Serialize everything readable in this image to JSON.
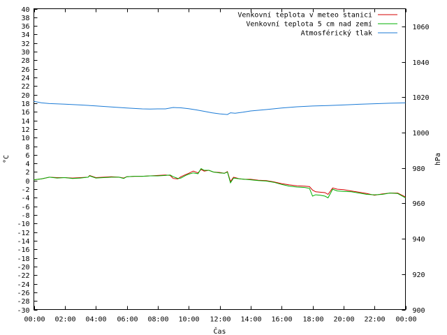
{
  "chart_data": {
    "type": "line",
    "xlabel": "Čas",
    "ylabel": "°C",
    "y2label": "hPa",
    "x_ticks": [
      "00:00",
      "02:00",
      "04:00",
      "06:00",
      "08:00",
      "10:00",
      "12:00",
      "14:00",
      "16:00",
      "18:00",
      "20:00",
      "22:00",
      "00:00"
    ],
    "x_range_hours": [
      0,
      24
    ],
    "ylim": [
      -30,
      40
    ],
    "y_step": 2,
    "y2lim": [
      900,
      1070
    ],
    "y2_ticks": [
      900,
      920,
      940,
      960,
      980,
      1000,
      1020,
      1040,
      1060
    ],
    "grid": false,
    "legend_position": "top-right",
    "series": [
      {
        "name": "Venkovní teplota v meteo stanici",
        "axis": "left",
        "color": "#d40000",
        "x": [
          0,
          0.5,
          1,
          1.5,
          2,
          2.5,
          3,
          3.5,
          3.6,
          4,
          4.5,
          5,
          5.5,
          5.8,
          6,
          6.5,
          7,
          7.5,
          8,
          8.5,
          8.8,
          9,
          9.3,
          9.5,
          9.8,
          10,
          10.3,
          10.6,
          10.8,
          11,
          11.3,
          11.6,
          12,
          12.3,
          12.5,
          12.7,
          12.9,
          13.1,
          13.3,
          13.6,
          14,
          14.5,
          15,
          15.5,
          16,
          16.5,
          17,
          17.5,
          17.8,
          18,
          18.2,
          18.5,
          18.8,
          19,
          19.3,
          19.6,
          20,
          20.5,
          21,
          21.5,
          22,
          22.5,
          23,
          23.5,
          24
        ],
        "values": [
          0.2,
          0.4,
          0.8,
          0.7,
          0.7,
          0.6,
          0.7,
          0.8,
          1.2,
          0.7,
          0.8,
          0.9,
          0.8,
          0.6,
          0.9,
          1.0,
          1.0,
          1.1,
          1.2,
          1.3,
          1.2,
          0.5,
          0.4,
          0.9,
          1.4,
          1.7,
          2.2,
          1.8,
          2.6,
          2.2,
          2.4,
          2.0,
          1.9,
          1.7,
          2.1,
          -0.2,
          0.8,
          0.6,
          0.4,
          0.3,
          0.3,
          0.1,
          0.0,
          -0.3,
          -0.7,
          -1.0,
          -1.2,
          -1.3,
          -1.4,
          -2.2,
          -2.6,
          -2.7,
          -2.8,
          -3.2,
          -1.7,
          -2.0,
          -2.1,
          -2.4,
          -2.7,
          -3.0,
          -3.4,
          -3.1,
          -2.9,
          -2.9,
          -3.8
        ]
      },
      {
        "name": "Venkovní teplota 5 cm nad zemí",
        "axis": "left",
        "color": "#00b000",
        "x": [
          0,
          0.5,
          1,
          1.5,
          2,
          2.5,
          3,
          3.5,
          3.6,
          4,
          4.5,
          5,
          5.5,
          5.8,
          6,
          6.5,
          7,
          7.5,
          8,
          8.5,
          8.8,
          9,
          9.3,
          9.5,
          9.8,
          10,
          10.3,
          10.6,
          10.8,
          11,
          11.3,
          11.6,
          12,
          12.3,
          12.5,
          12.7,
          12.9,
          13.1,
          13.3,
          13.6,
          14,
          14.5,
          15,
          15.5,
          16,
          16.5,
          17,
          17.5,
          17.8,
          18,
          18.2,
          18.5,
          18.8,
          19,
          19.3,
          19.6,
          20,
          20.5,
          21,
          21.5,
          22,
          22.5,
          23,
          23.5,
          24
        ],
        "values": [
          0.2,
          0.4,
          0.8,
          0.6,
          0.7,
          0.5,
          0.6,
          0.8,
          1.1,
          0.6,
          0.7,
          0.8,
          0.8,
          0.5,
          0.9,
          1.0,
          1.0,
          1.1,
          1.1,
          1.2,
          1.3,
          0.9,
          0.5,
          0.6,
          1.2,
          1.5,
          1.8,
          1.6,
          2.8,
          2.4,
          2.4,
          2.0,
          1.8,
          1.7,
          2.0,
          -0.5,
          0.6,
          0.5,
          0.4,
          0.3,
          0.2,
          0.0,
          -0.1,
          -0.4,
          -0.9,
          -1.3,
          -1.5,
          -1.6,
          -1.8,
          -3.6,
          -3.3,
          -3.4,
          -3.6,
          -4.0,
          -2.0,
          -2.4,
          -2.5,
          -2.6,
          -2.9,
          -3.2,
          -3.3,
          -3.2,
          -2.9,
          -3.0,
          -4.0
        ]
      },
      {
        "name": "Atmosférický tlak",
        "axis": "right",
        "color": "#1a7ad6",
        "x": [
          0,
          0.5,
          1,
          2,
          3,
          4,
          5,
          6,
          7,
          7.5,
          8,
          8.5,
          9,
          9.5,
          10,
          10.5,
          11,
          11.5,
          12,
          12.5,
          12.7,
          13,
          13.5,
          14,
          15,
          16,
          17,
          18,
          19,
          20,
          21,
          22,
          23,
          24
        ],
        "values": [
          1017.6,
          1016.8,
          1016.4,
          1016.1,
          1015.6,
          1015.1,
          1014.5,
          1013.9,
          1013.4,
          1013.3,
          1013.4,
          1013.4,
          1014.2,
          1014.0,
          1013.5,
          1012.8,
          1012.0,
          1011.2,
          1010.6,
          1010.2,
          1011.2,
          1010.9,
          1011.5,
          1012.2,
          1013.0,
          1013.9,
          1014.6,
          1015.0,
          1015.3,
          1015.6,
          1016.0,
          1016.3,
          1016.6,
          1016.8
        ]
      }
    ]
  }
}
